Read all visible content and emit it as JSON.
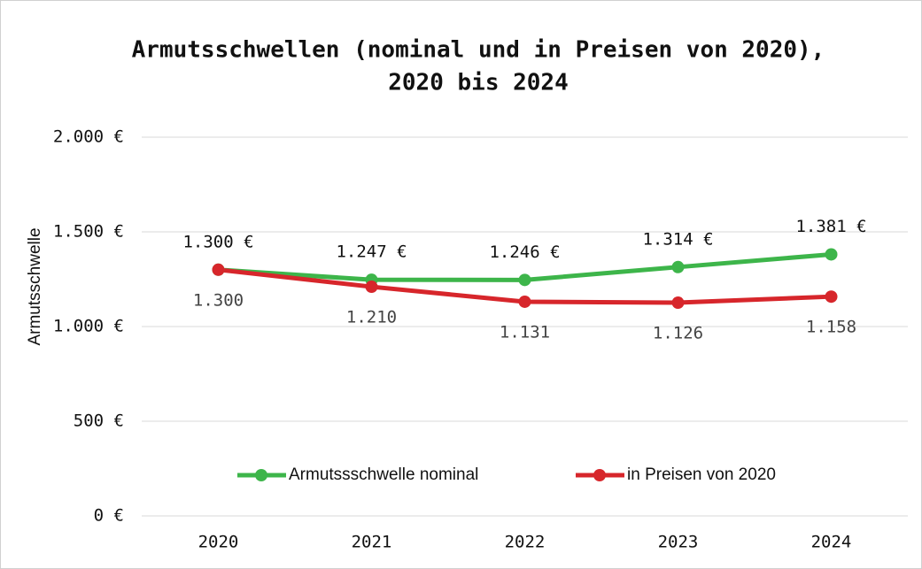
{
  "chart_data": {
    "type": "line",
    "title": [
      "Armutsschwellen (nominal und in Preisen von 2020),",
      "2020 bis 2024"
    ],
    "y_label": "Armutsschwelle",
    "categories": [
      "2020",
      "2021",
      "2022",
      "2023",
      "2024"
    ],
    "series": [
      {
        "name": "Armutssschwelle nominal",
        "color": "#3db54a",
        "values": [
          1300,
          1247,
          1246,
          1314,
          1381
        ],
        "value_labels": [
          "1.300 €",
          "1.247 €",
          "1.246 €",
          "1.314 €",
          "1.381 €"
        ],
        "label_position": "above"
      },
      {
        "name": "in Preisen von 2020",
        "color": "#d7262b",
        "values": [
          1300,
          1210,
          1131,
          1126,
          1158
        ],
        "value_labels": [
          "1.300",
          "1.210",
          "1.131",
          "1.126",
          "1.158"
        ],
        "label_position": "below"
      }
    ],
    "ylim": [
      0,
      2000
    ],
    "yticks": [
      {
        "value": 0,
        "label": "0 €"
      },
      {
        "value": 500,
        "label": "500 €"
      },
      {
        "value": 1000,
        "label": "1.000 €"
      },
      {
        "value": 1500,
        "label": "1.500 €"
      },
      {
        "value": 2000,
        "label": "2.000 €"
      }
    ],
    "grid": true,
    "legend": "lower center"
  }
}
